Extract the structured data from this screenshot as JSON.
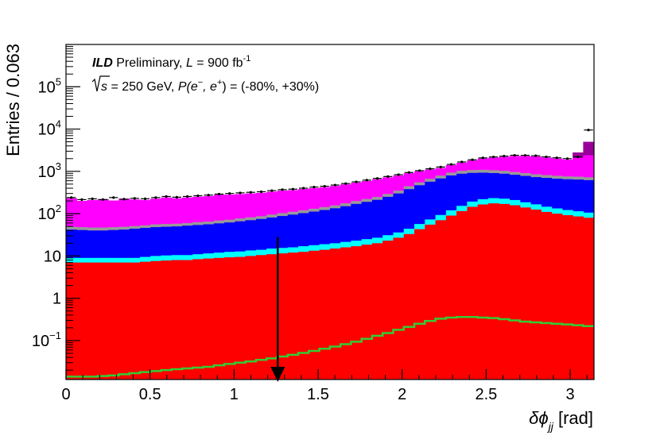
{
  "chart_data": {
    "type": "area",
    "title": "",
    "annotation": {
      "experiment": "ILD",
      "status": " Preliminary, ",
      "lumi_symbol": "L",
      "lumi_text": " = 900 fb",
      "lumi_exp": "-1",
      "sqrt_s_symbol": "s",
      "energy_text": " = 250 GeV, ",
      "pol_symbol": "P",
      "pol_open": "(e",
      "pol_minus": "−",
      "pol_mid": ", e",
      "pol_plus": "+",
      "pol_close": ") = (-80%, +30%)"
    },
    "xlabel_prefix": "δϕ",
    "xlabel_sub": "jj",
    "xlabel_unit": " [rad]",
    "ylabel": "Entries / 0.063",
    "xlim": [
      0,
      3.1416
    ],
    "ylim": [
      0.012,
      1000000
    ],
    "yscale": "log",
    "x_ticks": [
      {
        "value": 0,
        "label": "0"
      },
      {
        "value": 0.5,
        "label": "0.5"
      },
      {
        "value": 1,
        "label": "1"
      },
      {
        "value": 1.5,
        "label": "1.5"
      },
      {
        "value": 2,
        "label": "2"
      },
      {
        "value": 2.5,
        "label": "2.5"
      },
      {
        "value": 3,
        "label": "3"
      }
    ],
    "y_ticks": [
      {
        "value": 0.1,
        "base": "10",
        "exp": "−1"
      },
      {
        "value": 1,
        "base": "1",
        "exp": ""
      },
      {
        "value": 10,
        "base": "10",
        "exp": ""
      },
      {
        "value": 100,
        "base": "10",
        "exp": "2"
      },
      {
        "value": 1000,
        "base": "10",
        "exp": "3"
      },
      {
        "value": 10000,
        "base": "10",
        "exp": "4"
      },
      {
        "value": 100000,
        "base": "10",
        "exp": "5"
      }
    ],
    "bin_width": 0.0628,
    "n_bins": 50,
    "cut_line": {
      "x": 1.26,
      "y_top": 28
    },
    "background_colors": {
      "red": "#ff0000",
      "cyan": "#00ffff",
      "blue": "#0000ff",
      "gray": "#999999",
      "magenta": "#ff00ff",
      "purple": "#990099",
      "signal": "#33cc33",
      "points": "#000000"
    },
    "series": [
      {
        "key": "red",
        "values": [
          7,
          7,
          7,
          7,
          7,
          7,
          7,
          7.3,
          7.6,
          7.8,
          8,
          8,
          8.4,
          8.7,
          9,
          9.3,
          9.5,
          10,
          10.5,
          11,
          11.5,
          12,
          12.5,
          13.3,
          14,
          15,
          16,
          17,
          18.5,
          20,
          23,
          27,
          33,
          43,
          55,
          70,
          90,
          115,
          145,
          165,
          175,
          170,
          158,
          140,
          125,
          110,
          100,
          92,
          86,
          80
        ]
      },
      {
        "key": "cyan",
        "values": [
          9,
          9,
          9,
          9,
          9,
          9,
          9,
          9.5,
          10,
          10.3,
          10.5,
          10.5,
          11,
          11.5,
          12,
          12.5,
          12.8,
          13.5,
          14,
          15,
          15.5,
          16,
          17,
          18,
          19,
          20,
          21.5,
          23,
          25,
          27,
          31,
          36,
          44,
          57,
          73,
          93,
          120,
          153,
          193,
          220,
          233,
          226,
          210,
          186,
          166,
          146,
          133,
          122,
          114,
          106
        ]
      },
      {
        "key": "blue",
        "values": [
          42,
          41,
          40,
          40,
          41,
          42,
          44,
          46,
          48,
          49,
          50,
          52,
          54,
          56,
          59,
          62,
          66,
          70,
          75,
          81,
          88,
          95,
          103,
          112,
          122,
          134,
          150,
          170,
          190,
          212,
          250,
          300,
          380,
          470,
          570,
          680,
          800,
          880,
          920,
          930,
          910,
          880,
          830,
          780,
          730,
          700,
          670,
          650,
          640,
          620
        ]
      },
      {
        "key": "gray",
        "values": [
          49,
          48,
          47,
          47,
          48,
          49,
          51,
          53,
          56,
          57,
          58,
          60,
          63,
          65,
          69,
          72,
          77,
          82,
          87,
          95,
          103,
          111,
          120,
          131,
          143,
          157,
          176,
          199,
          222,
          248,
          293,
          350,
          445,
          550,
          667,
          795,
          935,
          1030,
          1075,
          1088,
          1065,
          1030,
          970,
          912,
          854,
          818,
          784,
          760,
          749,
          725
        ]
      },
      {
        "key": "magenta",
        "values": [
          230,
          200,
          210,
          220,
          205,
          225,
          215,
          210,
          225,
          240,
          230,
          240,
          250,
          260,
          280,
          280,
          290,
          300,
          310,
          330,
          350,
          360,
          380,
          400,
          420,
          450,
          490,
          540,
          590,
          650,
          720,
          800,
          900,
          1000,
          1100,
          1200,
          1400,
          1600,
          1800,
          2000,
          2100,
          2200,
          2300,
          2300,
          2250,
          2100,
          2000,
          1900,
          2100,
          2400
        ]
      },
      {
        "key": "purple",
        "values": [
          0,
          0,
          0,
          0,
          0,
          0,
          0,
          0,
          0,
          0,
          0,
          0,
          0,
          0,
          0,
          0,
          0,
          0,
          0,
          0,
          0,
          0,
          0,
          0,
          0,
          0,
          0,
          0,
          0,
          0,
          0,
          0,
          0,
          0,
          0,
          0,
          0,
          0,
          0,
          0,
          0,
          0,
          0,
          0,
          0,
          0,
          0,
          0,
          700,
          2600
        ]
      },
      {
        "key": "signal",
        "values": [
          0.014,
          0.014,
          0.014,
          0.0145,
          0.015,
          0.016,
          0.017,
          0.018,
          0.019,
          0.02,
          0.021,
          0.022,
          0.023,
          0.024,
          0.026,
          0.028,
          0.03,
          0.032,
          0.035,
          0.038,
          0.042,
          0.046,
          0.051,
          0.057,
          0.064,
          0.072,
          0.082,
          0.094,
          0.11,
          0.13,
          0.15,
          0.18,
          0.21,
          0.25,
          0.29,
          0.33,
          0.35,
          0.36,
          0.36,
          0.35,
          0.34,
          0.32,
          0.3,
          0.28,
          0.27,
          0.26,
          0.25,
          0.24,
          0.23,
          0.22
        ]
      },
      {
        "key": "data_points",
        "values": [
          240,
          215,
          225,
          215,
          240,
          220,
          230,
          225,
          240,
          255,
          245,
          255,
          265,
          275,
          290,
          300,
          310,
          320,
          330,
          350,
          370,
          380,
          400,
          425,
          445,
          475,
          515,
          565,
          620,
          680,
          755,
          835,
          940,
          1040,
          1150,
          1270,
          1460,
          1670,
          1880,
          2080,
          2190,
          2290,
          2400,
          2390,
          2340,
          2200,
          2090,
          2000,
          2200,
          9500
        ]
      }
    ]
  }
}
